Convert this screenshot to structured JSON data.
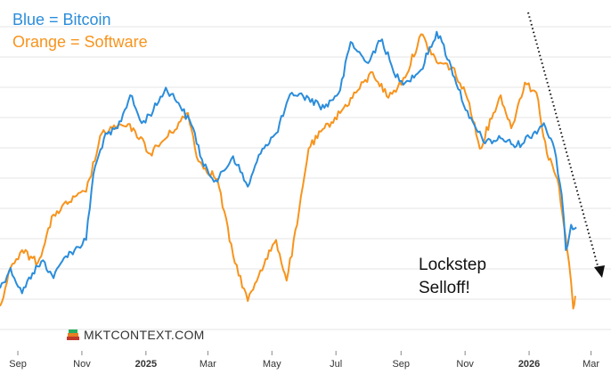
{
  "legend": {
    "blue": "Blue = Bitcoin",
    "orange": "Orange = Software"
  },
  "colors": {
    "bitcoin": "#2b8ddb",
    "software": "#f7941d",
    "grid": "#e6e6e6",
    "arrow": "#111111"
  },
  "annotation": {
    "line1": "Lockstep",
    "line2": "Selloff!"
  },
  "brand": {
    "name": "MKTCONTEXT.COM",
    "icon": "stacked-books-icon"
  },
  "chart_data": {
    "type": "line",
    "title": "",
    "xlabel": "",
    "ylabel": "",
    "grid": true,
    "x_range": [
      "2024-08-15",
      "2026-03-20"
    ],
    "y_range": [
      0,
      100
    ],
    "x_ticks": [
      {
        "date": "2024-09-01",
        "label": "Sep",
        "bold": false
      },
      {
        "date": "2024-11-01",
        "label": "Nov",
        "bold": false
      },
      {
        "date": "2025-01-01",
        "label": "2025",
        "bold": true
      },
      {
        "date": "2025-03-01",
        "label": "Mar",
        "bold": false
      },
      {
        "date": "2025-05-01",
        "label": "May",
        "bold": false
      },
      {
        "date": "2025-07-01",
        "label": "Jul",
        "bold": false
      },
      {
        "date": "2025-09-01",
        "label": "Sep",
        "bold": false
      },
      {
        "date": "2025-11-01",
        "label": "Nov",
        "bold": false
      },
      {
        "date": "2026-01-01",
        "label": "2026",
        "bold": true
      },
      {
        "date": "2026-03-01",
        "label": "Mar",
        "bold": false
      }
    ],
    "series": [
      {
        "name": "Bitcoin",
        "color": "#2b8ddb",
        "points": [
          [
            "2024-08-15",
            15
          ],
          [
            "2024-08-25",
            23
          ],
          [
            "2024-09-05",
            13
          ],
          [
            "2024-09-15",
            21
          ],
          [
            "2024-09-25",
            26
          ],
          [
            "2024-10-05",
            19
          ],
          [
            "2024-10-15",
            27
          ],
          [
            "2024-10-25",
            30
          ],
          [
            "2024-11-05",
            34
          ],
          [
            "2024-11-12",
            60
          ],
          [
            "2024-11-22",
            74
          ],
          [
            "2024-12-05",
            78
          ],
          [
            "2024-12-17",
            91
          ],
          [
            "2024-12-28",
            80
          ],
          [
            "2025-01-08",
            85
          ],
          [
            "2025-01-20",
            94
          ],
          [
            "2025-02-01",
            88
          ],
          [
            "2025-02-15",
            78
          ],
          [
            "2025-02-25",
            63
          ],
          [
            "2025-03-10",
            57
          ],
          [
            "2025-03-25",
            67
          ],
          [
            "2025-04-08",
            55
          ],
          [
            "2025-04-22",
            70
          ],
          [
            "2025-05-05",
            76
          ],
          [
            "2025-05-20",
            92
          ],
          [
            "2025-06-05",
            90
          ],
          [
            "2025-06-20",
            86
          ],
          [
            "2025-07-05",
            93
          ],
          [
            "2025-07-15",
            112
          ],
          [
            "2025-07-30",
            104
          ],
          [
            "2025-08-14",
            113
          ],
          [
            "2025-08-25",
            100
          ],
          [
            "2025-09-05",
            96
          ],
          [
            "2025-09-20",
            101
          ],
          [
            "2025-10-05",
            116
          ],
          [
            "2025-10-10",
            112
          ],
          [
            "2025-10-22",
            98
          ],
          [
            "2025-11-05",
            82
          ],
          [
            "2025-11-20",
            72
          ],
          [
            "2025-12-05",
            74
          ],
          [
            "2025-12-20",
            71
          ],
          [
            "2026-01-05",
            76
          ],
          [
            "2026-01-15",
            80
          ],
          [
            "2026-01-25",
            70
          ],
          [
            "2026-02-01",
            52
          ],
          [
            "2026-02-05",
            30
          ],
          [
            "2026-02-10",
            40
          ],
          [
            "2026-02-15",
            39
          ]
        ]
      },
      {
        "name": "Software",
        "color": "#f7941d",
        "points": [
          [
            "2024-08-15",
            8
          ],
          [
            "2024-08-25",
            23
          ],
          [
            "2024-09-05",
            30
          ],
          [
            "2024-09-20",
            25
          ],
          [
            "2024-10-05",
            44
          ],
          [
            "2024-10-20",
            49
          ],
          [
            "2024-11-05",
            53
          ],
          [
            "2024-11-20",
            76
          ],
          [
            "2024-12-05",
            79
          ],
          [
            "2024-12-20",
            78
          ],
          [
            "2025-01-05",
            68
          ],
          [
            "2025-01-20",
            74
          ],
          [
            "2025-02-10",
            84
          ],
          [
            "2025-02-20",
            65
          ],
          [
            "2025-03-10",
            58
          ],
          [
            "2025-03-25",
            28
          ],
          [
            "2025-04-08",
            10
          ],
          [
            "2025-04-20",
            22
          ],
          [
            "2025-05-05",
            34
          ],
          [
            "2025-05-15",
            18
          ],
          [
            "2025-05-25",
            40
          ],
          [
            "2025-06-05",
            70
          ],
          [
            "2025-06-20",
            78
          ],
          [
            "2025-07-05",
            84
          ],
          [
            "2025-07-20",
            92
          ],
          [
            "2025-08-05",
            100
          ],
          [
            "2025-08-20",
            90
          ],
          [
            "2025-09-05",
            98
          ],
          [
            "2025-09-20",
            115
          ],
          [
            "2025-10-05",
            104
          ],
          [
            "2025-10-20",
            102
          ],
          [
            "2025-11-05",
            88
          ],
          [
            "2025-11-15",
            70
          ],
          [
            "2025-11-28",
            84
          ],
          [
            "2025-12-05",
            91
          ],
          [
            "2025-12-15",
            78
          ],
          [
            "2025-12-28",
            96
          ],
          [
            "2026-01-08",
            92
          ],
          [
            "2026-01-18",
            68
          ],
          [
            "2026-01-28",
            58
          ],
          [
            "2026-02-03",
            40
          ],
          [
            "2026-02-08",
            25
          ],
          [
            "2026-02-12",
            7
          ],
          [
            "2026-02-14",
            12
          ]
        ]
      }
    ]
  }
}
